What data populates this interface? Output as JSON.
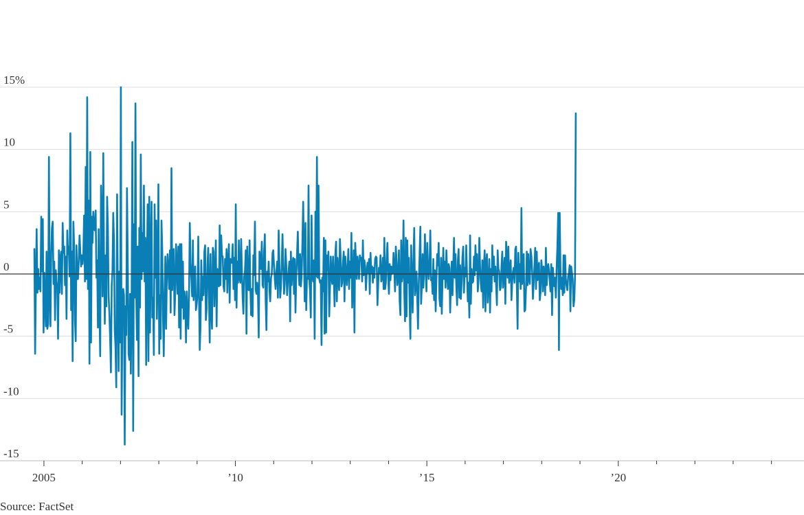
{
  "source": "Source: FactSet",
  "chart_data": {
    "type": "line",
    "title": "",
    "xlabel": "",
    "ylabel": "",
    "y_unit": "%",
    "ylim": [
      -15,
      15
    ],
    "y_ticks": [
      15,
      10,
      5,
      0,
      -5,
      -10,
      -15
    ],
    "y_tick_labels": [
      "15%",
      "10",
      "5",
      "0",
      "-5",
      "-10",
      "-15"
    ],
    "xlim": [
      2004.75,
      2024.85
    ],
    "x_labeled_ticks": [
      2005,
      2010,
      2015,
      2020
    ],
    "x_tick_labels": [
      "2005",
      "’10",
      "’15",
      "’20"
    ],
    "x_minor_ticks": [
      2005,
      2006,
      2007,
      2008,
      2009,
      2010,
      2011,
      2012,
      2013,
      2014,
      2015,
      2016,
      2017,
      2018,
      2019,
      2020,
      2021,
      2022,
      2023,
      2024
    ],
    "grid": true,
    "legend": "none",
    "color": "#0a7fb5",
    "series": [
      {
        "x_start": 2004.75,
        "x_step": 0.02,
        "values": [
          2.0,
          -6.4,
          -1.0,
          3.6,
          -1.5,
          0.4,
          -1.2,
          -0.3,
          -1.4,
          4.6,
          0.2,
          4.4,
          -4.7,
          0.1,
          -2.3,
          -4.2,
          1.8,
          -4.4,
          -4.0,
          9.4,
          -1.8,
          -4.2,
          1.6,
          3.7,
          4.2,
          -0.8,
          1.0,
          -3.7,
          0.3,
          -0.6,
          -1.2,
          -5.2,
          1.9,
          -1.5,
          1.2,
          1.8,
          -1.6,
          4.1,
          1.7,
          2.2,
          -0.9,
          1.4,
          -3.6,
          3.5,
          1.6,
          2.2,
          -0.2,
          11.3,
          -2.9,
          1.8,
          -7.0,
          4.2,
          2.0,
          -3.7,
          -5.4,
          2.3,
          -0.4,
          -0.4,
          1.1,
          3.1,
          1.7,
          0.6,
          1.5,
          0.8,
          1.7,
          4.7,
          -0.6,
          8.6,
          -0.4,
          14.2,
          -1.2,
          5.9,
          -7.2,
          9.8,
          -5.5,
          4.6,
          2.5,
          5.0,
          3.6,
          3.5,
          5.1,
          -0.3,
          1.1,
          -4.3,
          3.6,
          -2.7,
          -6.6,
          7.1,
          3.9,
          -1.8,
          9.7,
          0.8,
          -4.0,
          1.5,
          -2.6,
          6.2,
          3.8,
          -1.8,
          -3.2,
          -5.2,
          -7.9,
          -0.9,
          0.3,
          4.9,
          2.6,
          -4.5,
          -5.9,
          -9.1,
          6.4,
          -1.7,
          -7.8,
          0.2,
          -5.5,
          15.0,
          -11.3,
          -2.8,
          -1.2,
          -1.7,
          -13.7,
          -2.6,
          -4.9,
          6.9,
          0.5,
          -6.4,
          -6.9,
          -1.6,
          -8.0,
          -2.1,
          10.6,
          -12.6,
          4.0,
          -1.9,
          13.7,
          -1.5,
          -5.3,
          2.2,
          -8.2,
          3.7,
          -2.7,
          9.6,
          -0.4,
          3.3,
          0.2,
          7.1,
          -0.6,
          2.9,
          -7.3,
          0.4,
          5.6,
          -7.0,
          6.2,
          -4.7,
          1.5,
          5.8,
          -3.5,
          -1.9,
          -6.5,
          5.6,
          -0.3,
          4.3,
          -3.6,
          -0.1,
          7.2,
          -6.4,
          -1.7,
          -5.2,
          4.3,
          1.9,
          -3.3,
          -6.6,
          -1.5,
          1.4,
          -4.4,
          -0.2,
          1.6,
          0.3,
          -1.2,
          1.9,
          -3.1,
          8.5,
          -1.3,
          1.4,
          2.0,
          -3.3,
          -1.4,
          2.4,
          0.7,
          -1.6,
          2.2,
          -4.3,
          2.4,
          -5.2,
          2.4,
          -2.7,
          1.0,
          -3.6,
          -1.4,
          -2.1,
          -5.5,
          -1.4,
          -3.4,
          -4.4,
          -1.7,
          4.1,
          0.9,
          -0.4,
          -1.8,
          2.7,
          -2.1,
          -1.0,
          0.6,
          -2.9,
          -2.4,
          -1.6,
          3.0,
          -1.8,
          -6.1,
          -4.1,
          1.1,
          -2.1,
          -0.2,
          -1.7,
          1.8,
          2.3,
          -3.7,
          -2.8,
          0.7,
          2.1,
          -1.8,
          -5.5,
          1.6,
          -2.6,
          -4.4,
          2.1,
          1.8,
          -2.6,
          -0.2,
          2.7,
          -4.2,
          0.4,
          -0.2,
          -1.0,
          3.9,
          -0.9,
          3.1,
          1.5,
          1.4,
          -1.0,
          -1.4,
          1.2,
          -0.4,
          2.0,
          -1.5,
          1.0,
          2.4,
          -2.3,
          1.2,
          1.1,
          0.9,
          2.4,
          -1.2,
          1.3,
          -2.1,
          5.6,
          -2.7,
          1.0,
          -0.7,
          2.7,
          -0.4,
          -0.7,
          2.8,
          0.4,
          -1.9,
          -3.2,
          -0.2,
          0.3,
          1.9,
          -4.8,
          2.2,
          -1.2,
          -1.3,
          2.7,
          -1.1,
          -3.3,
          -1.2,
          -3.4,
          1.5,
          -0.1,
          4.2,
          -1.3,
          -1.6,
          -0.7,
          -1.6,
          -5.1,
          1.8,
          1.0,
          0.4,
          2.6,
          -0.9,
          -1.1,
          1.8,
          3.2,
          -2.1,
          -4.5,
          0.2,
          -0.6,
          1.0,
          -1.3,
          -2.2,
          -0.3,
          0.0,
          1.7,
          1.9,
          0.6,
          -0.4,
          -1.2,
          0.2,
          1.0,
          -1.9,
          3.5,
          0.8,
          -1.9,
          -1.1,
          0.8,
          3.2,
          0.6,
          -1.6,
          -0.8,
          2.0,
          0.7,
          -1.7,
          -0.6,
          0.3,
          1.0,
          -3.8,
          1.8,
          -0.9,
          0.7,
          1.3,
          -1.6,
          1.2,
          -3.1,
          -0.2,
          1.5,
          3.4,
          0.4,
          -0.9,
          1.6,
          -1.0,
          -0.2,
          2.3,
          5.8,
          1.6,
          -2.2,
          4.1,
          -2.9,
          -0.3,
          -0.4,
          7.1,
          -0.4,
          -1.4,
          -3.5,
          4.7,
          -0.1,
          -0.6,
          1.1,
          -5.2,
          5.0,
          -0.2,
          9.4,
          -0.3,
          7.1,
          -0.4,
          -0.7,
          -0.5,
          -5.7,
          -0.3,
          -1.4,
          2.9,
          -4.8,
          2.7,
          -4.7,
          1.5,
          0.3,
          1.8,
          -3.4,
          -1.1,
          1.4,
          -0.2,
          -0.8,
          1.4,
          -0.3,
          -2.6,
          1.6,
          2.6,
          -2.2,
          1.3,
          -0.1,
          -1.3,
          2.8,
          1.2,
          -1.0,
          -0.7,
          0.9,
          1.8,
          -2.2,
          1.4,
          0.4,
          -0.9,
          0.4,
          2.0,
          -1.2,
          1.0,
          -0.3,
          3.3,
          -2.7,
          -0.8,
          1.9,
          -4.7,
          2.5,
          1.0,
          -0.4,
          1.4,
          0.5,
          -0.4,
          1.5,
          1.3,
          1.3,
          -0.6,
          2.7,
          -0.1,
          1.1,
          0.6,
          -1.3,
          0.1,
          0.9,
          0.1,
          1.2,
          -1.6,
          1.7,
          0.1,
          0.6,
          -0.7,
          0.5,
          -0.3,
          1.2,
          1.4,
          1.3,
          -2.5,
          -0.8,
          0.5,
          0.1,
          1.5,
          -0.6,
          -0.3,
          1.3,
          -1.2,
          2.9,
          -1.2,
          -0.7,
          1.2,
          2.5,
          -0.3,
          -1.6,
          0.8,
          -0.5,
          0.6,
          0.0,
          0.1,
          1.7,
          0.3,
          -1.4,
          2.2,
          1.0,
          -0.9,
          -0.2,
          1.9,
          -2.2,
          -3.3,
          2.7,
          -0.6,
          0.0,
          4.3,
          -1.4,
          -3.8,
          2.9,
          -3.4,
          2.7,
          -0.7,
          1.3,
          -2.5,
          -5.2,
          2.3,
          -0.5,
          -3.1,
          1.1,
          3.7,
          -1.7,
          -0.7,
          0.2,
          -1.9,
          -4.4,
          -0.8,
          1.5,
          3.8,
          -2.4,
          -0.9,
          1.6,
          -1.1,
          0.3,
          3.2,
          0.1,
          -1.4,
          2.5,
          0.8,
          -0.4,
          0.4,
          3.5,
          -0.5,
          -0.3,
          -1.6,
          1.2,
          -2.1,
          0.3,
          -3.0,
          -0.4,
          1.6,
          0.7,
          2.5,
          -2.0,
          -2.6,
          1.3,
          -3.2,
          -0.3,
          2.1,
          -0.4,
          1.0,
          -1.1,
          1.9,
          0.1,
          -1.2,
          0.8,
          0.5,
          -3.1,
          -0.7,
          1.0,
          -1.7,
          0.6,
          2.9,
          -0.3,
          1.6,
          -0.9,
          -2.5,
          1.1,
          2.0,
          -1.9,
          0.7,
          -2.0,
          -0.5,
          1.4,
          2.2,
          -1.5,
          0.5,
          -0.2,
          2.3,
          -0.3,
          -2.2,
          -0.7,
          -3.5,
          3.1,
          -2.4,
          0.4,
          -0.7,
          -0.6,
          1.4,
          -0.1,
          2.3,
          0.3,
          1.6,
          -1.4,
          -0.4,
          2.9,
          0.6,
          -0.8,
          -1.4,
          1.1,
          -2.7,
          0.6,
          1.9,
          -3.0,
          0.9,
          1.6,
          -2.3,
          -0.8,
          1.2,
          -3.1,
          0.4,
          -1.4,
          2.3,
          -0.1,
          1.4,
          -0.6,
          0.6,
          -1.0,
          -2.5,
          1.9,
          0.4,
          0.2,
          -1.3,
          -1.1,
          0.6,
          1.8,
          -1.1,
          0.2,
          1.3,
          -2.4,
          2.6,
          1.2,
          -0.3,
          2.2,
          -0.7,
          0.2,
          1.1,
          -2.1,
          -0.6,
          0.2,
          0.5,
          -0.7,
          2.0,
          2.2,
          -0.9,
          -4.4,
          1.7,
          -0.6,
          0.8,
          -1.2,
          5.3,
          -0.8,
          0.3,
          1.6,
          -3.0,
          -2.9,
          -1.1,
          1.8,
          -0.9,
          1.6,
          -0.4,
          -0.8,
          2.0,
          1.4,
          0.2,
          -2.0,
          -0.8,
          0.6,
          2.1,
          -1.2,
          1.8,
          -0.5,
          0.4,
          0.9,
          -2.1,
          -1.5,
          1.1,
          0.3,
          -1.4,
          0.6,
          -0.1,
          -1.7,
          2.1,
          -0.9,
          0.3,
          0.8,
          0.3,
          -0.6,
          -1.4,
          0.8,
          -3.3,
          0.5,
          -0.3,
          -1.0,
          -0.3,
          -1.9,
          0.4,
          2.3,
          4.9,
          -6.1,
          4.9,
          0.4,
          -1.2,
          -0.3,
          -1.7,
          1.5,
          -1.5,
          1.5,
          -0.4,
          -1.0,
          -1.3,
          -0.2,
          0.1,
          0.7,
          -3.0,
          0.6,
          0.1,
          -0.4,
          -2.6,
          -2.1,
          -0.2,
          12.9
        ]
      }
    ]
  }
}
